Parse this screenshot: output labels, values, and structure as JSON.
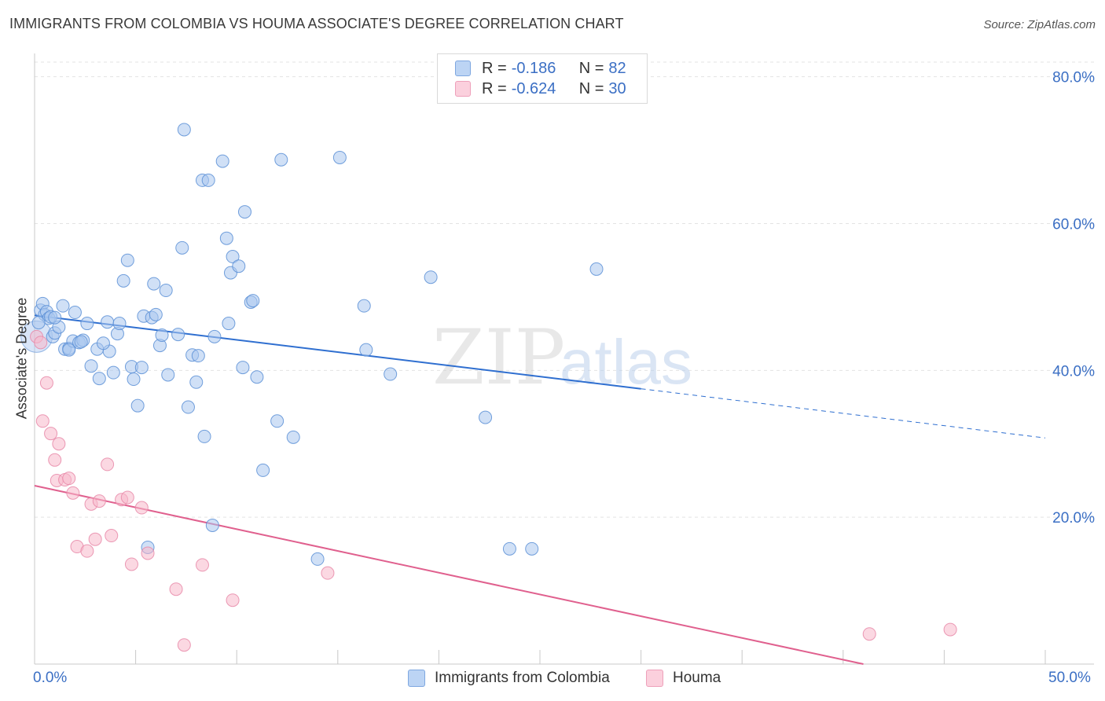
{
  "title": "IMMIGRANTS FROM COLOMBIA VS HOUMA ASSOCIATE'S DEGREE CORRELATION CHART",
  "source": "Source: ZipAtlas.com",
  "watermark": {
    "zip": "ZIP",
    "atlas": "atlas"
  },
  "colors": {
    "blue_fill": "#a9c6ef",
    "blue_stroke": "#5b8fd6",
    "blue_line": "#2f6fd0",
    "pink_fill": "#f7b8cb",
    "pink_stroke": "#e888a8",
    "pink_line": "#e0608e",
    "grid": "#e3e3e3",
    "tick_label": "#3b6fc4"
  },
  "legend": {
    "series1": {
      "r_label": "R =",
      "r_value": "-0.186",
      "n_label": "N =",
      "n_value": "82"
    },
    "series2": {
      "r_label": "R =",
      "r_value": "-0.624",
      "n_label": "N =",
      "n_value": "30"
    }
  },
  "chart_data": {
    "type": "scatter",
    "title": "IMMIGRANTS FROM COLOMBIA VS HOUMA ASSOCIATE'S DEGREE CORRELATION CHART",
    "xlabel": "",
    "ylabel": "Associate's Degree",
    "xlim": [
      0,
      50
    ],
    "ylim": [
      0,
      82
    ],
    "x_tick_labels": [
      "0.0%",
      "50.0%"
    ],
    "y_ticks": [
      20,
      40,
      60,
      80
    ],
    "y_tick_labels": [
      "20.0%",
      "40.0%",
      "60.0%",
      "80.0%"
    ],
    "grid": true,
    "legend_position": "top-center",
    "series": [
      {
        "name": "Immigrants from Colombia",
        "color": "blue",
        "trend": {
          "x0": 0,
          "y0": 47.5,
          "x1": 30,
          "y1": 37.5,
          "dashed_to_x": 50,
          "dashed_to_y": 30.8
        },
        "points": [
          [
            0.3,
            48.2
          ],
          [
            0.4,
            49.1
          ],
          [
            0.5,
            47.6
          ],
          [
            0.6,
            48.0
          ],
          [
            0.7,
            47.1
          ],
          [
            0.8,
            47.3
          ],
          [
            0.9,
            44.6
          ],
          [
            1.0,
            45.1
          ],
          [
            1.2,
            45.9
          ],
          [
            1.4,
            48.8
          ],
          [
            1.5,
            42.9
          ],
          [
            1.7,
            43.0
          ],
          [
            1.9,
            44.0
          ],
          [
            2.0,
            47.9
          ],
          [
            2.2,
            43.8
          ],
          [
            2.4,
            44.1
          ],
          [
            2.6,
            46.4
          ],
          [
            2.8,
            40.6
          ],
          [
            3.1,
            42.9
          ],
          [
            3.2,
            38.9
          ],
          [
            3.6,
            46.6
          ],
          [
            3.7,
            42.6
          ],
          [
            3.9,
            39.7
          ],
          [
            4.1,
            45.0
          ],
          [
            4.2,
            46.4
          ],
          [
            4.4,
            52.2
          ],
          [
            4.6,
            55.0
          ],
          [
            4.8,
            40.5
          ],
          [
            4.9,
            38.8
          ],
          [
            5.1,
            35.2
          ],
          [
            5.3,
            40.4
          ],
          [
            5.4,
            47.4
          ],
          [
            5.8,
            47.2
          ],
          [
            5.9,
            51.8
          ],
          [
            6.0,
            47.6
          ],
          [
            6.2,
            43.4
          ],
          [
            6.3,
            44.8
          ],
          [
            6.5,
            50.9
          ],
          [
            6.6,
            39.4
          ],
          [
            7.1,
            44.9
          ],
          [
            7.3,
            56.7
          ],
          [
            7.4,
            72.8
          ],
          [
            7.6,
            35.0
          ],
          [
            7.8,
            42.1
          ],
          [
            8.0,
            38.4
          ],
          [
            8.1,
            42.0
          ],
          [
            8.3,
            65.9
          ],
          [
            8.4,
            31.0
          ],
          [
            8.6,
            65.9
          ],
          [
            8.8,
            18.9
          ],
          [
            8.9,
            44.6
          ],
          [
            9.3,
            68.5
          ],
          [
            9.5,
            58.0
          ],
          [
            9.6,
            46.4
          ],
          [
            9.7,
            53.3
          ],
          [
            9.8,
            55.5
          ],
          [
            10.1,
            54.2
          ],
          [
            10.3,
            40.4
          ],
          [
            10.4,
            61.6
          ],
          [
            10.7,
            49.3
          ],
          [
            10.8,
            49.5
          ],
          [
            11.0,
            39.1
          ],
          [
            11.3,
            26.4
          ],
          [
            12.0,
            33.1
          ],
          [
            12.2,
            68.7
          ],
          [
            12.8,
            30.9
          ],
          [
            14.0,
            14.3
          ],
          [
            15.1,
            69.0
          ],
          [
            16.4,
            42.8
          ],
          [
            16.3,
            48.8
          ],
          [
            17.6,
            39.5
          ],
          [
            19.6,
            52.7
          ],
          [
            22.3,
            33.6
          ],
          [
            23.5,
            15.7
          ],
          [
            24.6,
            15.7
          ],
          [
            27.8,
            53.8
          ],
          [
            1.7,
            42.8
          ],
          [
            2.3,
            43.9
          ],
          [
            5.6,
            15.9
          ],
          [
            0.2,
            46.5
          ],
          [
            1.0,
            47.2
          ],
          [
            3.4,
            43.7
          ]
        ]
      },
      {
        "name": "Houma",
        "color": "pink",
        "trend": {
          "x0": 0,
          "y0": 24.3,
          "x1": 41,
          "y1": 0
        },
        "points": [
          [
            0.1,
            44.6
          ],
          [
            0.4,
            33.1
          ],
          [
            0.6,
            38.3
          ],
          [
            0.8,
            31.4
          ],
          [
            1.0,
            27.8
          ],
          [
            1.1,
            25.0
          ],
          [
            1.2,
            30.0
          ],
          [
            1.5,
            25.1
          ],
          [
            1.7,
            25.3
          ],
          [
            1.9,
            23.3
          ],
          [
            2.1,
            16.0
          ],
          [
            2.6,
            15.4
          ],
          [
            2.8,
            21.8
          ],
          [
            3.0,
            17.0
          ],
          [
            3.2,
            22.2
          ],
          [
            3.6,
            27.2
          ],
          [
            3.8,
            17.5
          ],
          [
            4.3,
            22.4
          ],
          [
            4.6,
            22.7
          ],
          [
            4.8,
            13.6
          ],
          [
            5.3,
            21.3
          ],
          [
            5.6,
            15.1
          ],
          [
            7.0,
            10.2
          ],
          [
            7.4,
            2.6
          ],
          [
            8.3,
            13.5
          ],
          [
            9.8,
            8.7
          ],
          [
            14.5,
            12.4
          ],
          [
            41.3,
            4.1
          ],
          [
            45.3,
            4.7
          ],
          [
            0.3,
            43.8
          ]
        ]
      }
    ]
  },
  "bottom_legend": {
    "item1": "Immigrants from Colombia",
    "item2": "Houma"
  }
}
